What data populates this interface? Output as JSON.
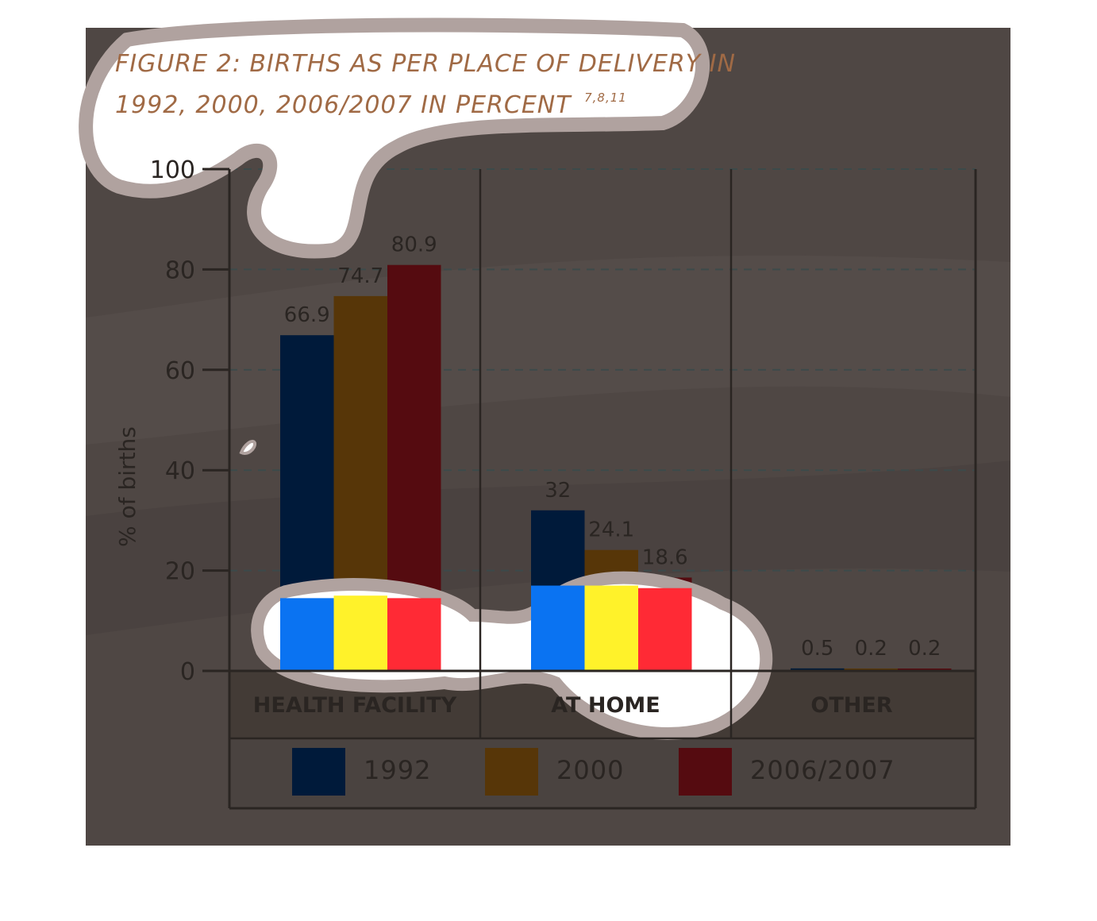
{
  "chart_data": {
    "type": "bar",
    "title": "FIGURE 2: BIRTHS AS PER PLACE OF DELIVERY IN",
    "title_line2": "1992, 2000, 2006/2007 IN PERCENT",
    "title_sup": "7,8,11",
    "ylabel": "% of births",
    "xlabel": "",
    "ylim": [
      0,
      100
    ],
    "yticks": [
      0,
      20,
      40,
      60,
      80,
      100
    ],
    "grid": true,
    "legend_position": "bottom",
    "categories": [
      "HEALTH FACILITY",
      "AT HOME",
      "OTHER"
    ],
    "series": [
      {
        "name": "1992",
        "values": [
          66.9,
          32,
          0.5
        ],
        "labels": [
          "66.9",
          "32",
          "0.5"
        ],
        "color": "#001a3a"
      },
      {
        "name": "2000",
        "values": [
          74.7,
          24.1,
          0.2
        ],
        "labels": [
          "74.7",
          "24.1",
          "0.2"
        ],
        "color": "#573608"
      },
      {
        "name": "2006/2007",
        "values": [
          80.9,
          18.6,
          0.2
        ],
        "labels": [
          "80.9",
          "18.6",
          "0.2"
        ],
        "color": "#550b10"
      }
    ]
  },
  "colors": {
    "panel_background": "#4f4744",
    "axis": "#2a2522",
    "title": "#a06a45",
    "blob_fill": "#ffffff",
    "blob_outline": "#b0a29f",
    "patch_blue": "#0a73f2",
    "patch_yellow": "#fff22a",
    "patch_red": "#ff2a35"
  }
}
